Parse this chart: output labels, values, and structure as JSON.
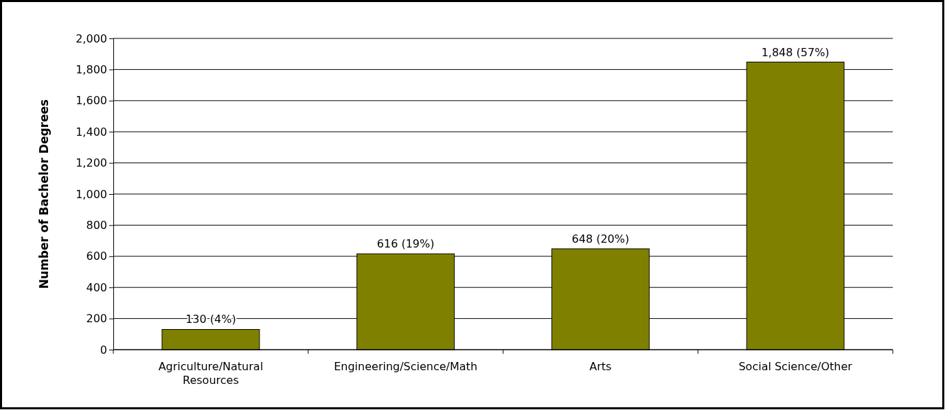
{
  "chart_data": {
    "type": "bar",
    "ylabel": "Number of Bachelor Degrees",
    "categories": [
      "Agriculture/Natural Resources",
      "Engineering/Science/Math",
      "Arts",
      "Social Science/Other"
    ],
    "values": [
      130,
      616,
      648,
      1848
    ],
    "value_labels": [
      "130 (4%)",
      "616 (19%)",
      "648 (20%)",
      "1,848 (57%)"
    ],
    "color": "#808000",
    "ylim": [
      0,
      2000
    ],
    "yticks": [
      {
        "value": 0,
        "label": "0"
      },
      {
        "value": 200,
        "label": "200"
      },
      {
        "value": 400,
        "label": "400"
      },
      {
        "value": 600,
        "label": "600"
      },
      {
        "value": 800,
        "label": "800"
      },
      {
        "value": 1000,
        "label": "1,000"
      },
      {
        "value": 1200,
        "label": "1,200"
      },
      {
        "value": 1400,
        "label": "1,400"
      },
      {
        "value": 1600,
        "label": "1,600"
      },
      {
        "value": 1800,
        "label": "1,800"
      },
      {
        "value": 2000,
        "label": "2,000"
      }
    ],
    "grid": "y"
  }
}
